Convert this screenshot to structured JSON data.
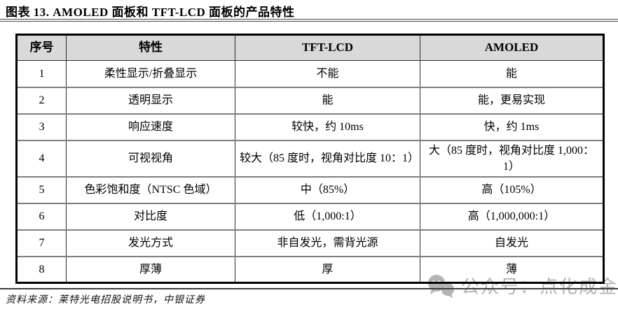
{
  "page": {
    "title": "图表 13. AMOLED 面板和 TFT-LCD 面板的产品特性",
    "source": "资料来源：莱特光电招股说明书，中银证券",
    "watermark": {
      "icon": "wechat-icon",
      "text": "公众号：点化成金"
    }
  },
  "table": {
    "columns": [
      "序号",
      "特性",
      "TFT-LCD",
      "AMOLED"
    ],
    "rows": [
      [
        "1",
        "柔性显示/折叠显示",
        "不能",
        "能"
      ],
      [
        "2",
        "透明显示",
        "能",
        "能，更易实现"
      ],
      [
        "3",
        "响应速度",
        "较快，约 10ms",
        "快，约 1ms"
      ],
      [
        "4",
        "可视视角",
        "较大（85 度时，视角对比度 10：1）",
        "大（85 度时，视角对比度 1,000：1）"
      ],
      [
        "5",
        "色彩饱和度（NTSC 色域）",
        "中（85%）",
        "高（105%）"
      ],
      [
        "6",
        "对比度",
        "低（1,000:1）",
        "高（1,000,000:1）"
      ],
      [
        "7",
        "发光方式",
        "非自发光，需背光源",
        "自发光"
      ],
      [
        "8",
        "厚薄",
        "厚",
        "薄"
      ]
    ]
  },
  "colors": {
    "header_bg": "#d9d9d9",
    "outer_border": "#000000",
    "row_divider": "#7f7f7f",
    "watermark_gray": "#b3b3b3"
  }
}
